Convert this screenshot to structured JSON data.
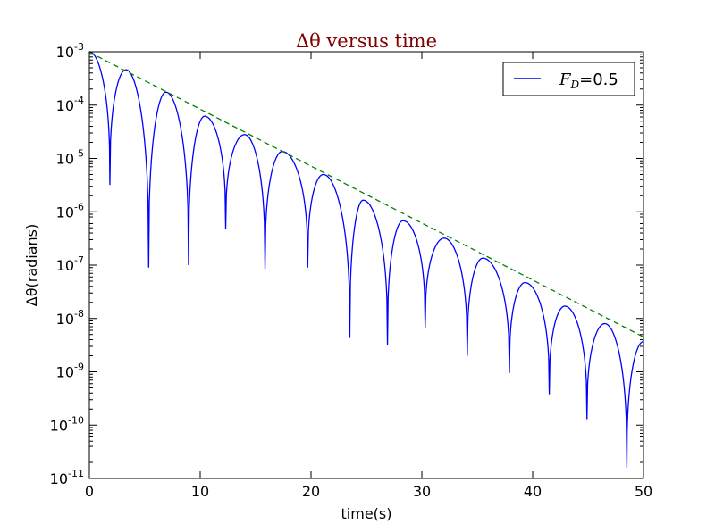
{
  "chart_data": {
    "type": "line",
    "title": "Δθ versus time",
    "title_color": "#800000",
    "xlabel": "time(s)",
    "ylabel": "Δθ(radians)",
    "xlim": [
      0,
      50
    ],
    "ylim": [
      1e-11,
      0.001
    ],
    "yscale": "log",
    "grid": false,
    "legend_position": "top-right",
    "x_ticks": [
      "0",
      "10",
      "20",
      "30",
      "40",
      "50"
    ],
    "y_ticks": [
      {
        "base": "10",
        "exp": "-3"
      },
      {
        "base": "10",
        "exp": "-4"
      },
      {
        "base": "10",
        "exp": "-5"
      },
      {
        "base": "10",
        "exp": "-6"
      },
      {
        "base": "10",
        "exp": "-7"
      },
      {
        "base": "10",
        "exp": "-8"
      },
      {
        "base": "10",
        "exp": "-9"
      },
      {
        "base": "10",
        "exp": "-10"
      },
      {
        "base": "10",
        "exp": "-11"
      }
    ],
    "series": [
      {
        "name": "F_D=0.5",
        "legend_label": "FD=0.5",
        "color": "#0000ff",
        "style": "solid",
        "start": 0.001,
        "decay_envelope": [
          [
            0,
            0.00098
          ],
          [
            50,
            4.5e-09
          ]
        ],
        "zeros": [
          [
            1.85,
            3.2e-06
          ],
          [
            5.35,
            9e-08
          ],
          [
            8.95,
            1e-07
          ],
          [
            12.3,
            4.8e-07
          ],
          [
            15.85,
            8.5e-08
          ],
          [
            19.7,
            9e-08
          ],
          [
            23.5,
            4.3e-09
          ],
          [
            26.9,
            3.2e-09
          ],
          [
            30.3,
            6.5e-09
          ],
          [
            34.1,
            2e-09
          ],
          [
            37.9,
            9.5e-10
          ],
          [
            41.5,
            3.8e-10
          ],
          [
            44.9,
            1.3e-10
          ],
          [
            48.5,
            1.6e-11
          ]
        ],
        "peaks": [
          [
            3.3,
            0.00046
          ],
          [
            6.9,
            0.000175
          ],
          [
            10.4,
            6.2e-05
          ],
          [
            14.0,
            2.8e-05
          ],
          [
            17.4,
            1.35e-05
          ],
          [
            21.1,
            5e-06
          ],
          [
            24.7,
            1.65e-06
          ],
          [
            28.3,
            6.8e-07
          ],
          [
            32.0,
            3.2e-07
          ],
          [
            35.5,
            1.35e-07
          ],
          [
            39.3,
            4.7e-08
          ],
          [
            42.9,
            1.7e-08
          ],
          [
            46.5,
            8e-09
          ],
          [
            50.0,
            3.7e-09
          ]
        ]
      },
      {
        "name": "",
        "color": "#008000",
        "style": "dashed",
        "points": [
          [
            0,
            0.00098
          ],
          [
            50,
            4.5e-09
          ]
        ]
      }
    ]
  }
}
